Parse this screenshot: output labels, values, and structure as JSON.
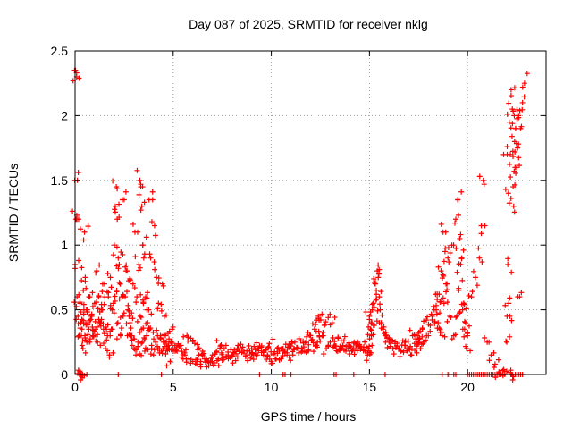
{
  "chart_data": {
    "type": "scatter",
    "title": "Day 087 of 2025, SRMTID for receiver nklg",
    "xlabel": "GPS time / hours",
    "ylabel": "SRMTID / TECUs",
    "xlim": [
      0,
      24
    ],
    "ylim": [
      0,
      2.5
    ],
    "xticks": [
      0,
      5,
      10,
      15,
      20
    ],
    "xtick_labels": [
      "0",
      "5",
      "10",
      "15",
      "20"
    ],
    "yticks": [
      0,
      0.5,
      1,
      1.5,
      2,
      2.5
    ],
    "ytick_labels": [
      "0",
      "0.5",
      "1",
      "1.5",
      "2",
      "2.5"
    ],
    "grid": true,
    "marker": "+",
    "color": "#ff0000",
    "series": [
      {
        "name": "SRMTID",
        "x": [
          0.0,
          0.05,
          0.1,
          0.15,
          0.2,
          0.25,
          0.3,
          0.35,
          0.4,
          0.45,
          0.5,
          0.55,
          0.6,
          0.7,
          0.8,
          0.9,
          1.0,
          1.1,
          1.2,
          1.3,
          1.4,
          1.5,
          1.6,
          1.7,
          1.8,
          1.9,
          2.0,
          2.05,
          2.1,
          2.15,
          2.2,
          2.25,
          2.3,
          2.4,
          2.5,
          2.6,
          2.7,
          2.8,
          2.9,
          3.0,
          3.1,
          3.2,
          3.3,
          3.35,
          3.4,
          3.45,
          3.5,
          3.6,
          3.7,
          3.8,
          3.9,
          4.0,
          4.1,
          4.2,
          4.3,
          4.4,
          4.5,
          4.6,
          4.7,
          4.8,
          4.9,
          5.0,
          5.2,
          5.4,
          5.6,
          5.8,
          6.0,
          6.2,
          6.4,
          6.6,
          6.8,
          7.0,
          7.2,
          7.4,
          7.6,
          7.8,
          8.0,
          8.2,
          8.4,
          8.6,
          8.8,
          9.0,
          9.2,
          9.4,
          9.6,
          9.8,
          10.0,
          10.2,
          10.4,
          10.6,
          10.8,
          11.0,
          11.2,
          11.4,
          11.6,
          11.8,
          12.0,
          12.2,
          12.3,
          12.4,
          12.6,
          12.8,
          13.0,
          13.2,
          13.4,
          13.6,
          13.8,
          14.0,
          14.2,
          14.4,
          14.6,
          14.8,
          14.9,
          15.0,
          15.05,
          15.1,
          15.2,
          15.3,
          15.4,
          15.5,
          15.6,
          15.8,
          16.0,
          16.2,
          16.4,
          16.6,
          16.8,
          17.0,
          17.2,
          17.4,
          17.5,
          17.6,
          17.8,
          18.0,
          18.2,
          18.4,
          18.5,
          18.6,
          18.7,
          18.8,
          18.9,
          19.0,
          19.2,
          19.4,
          19.5,
          19.6,
          19.7,
          19.8,
          19.9,
          20.0,
          20.2,
          20.4,
          20.6,
          20.7,
          20.8,
          21.0,
          21.2,
          21.4,
          21.6,
          21.8,
          21.9,
          22.0,
          22.05,
          22.1,
          22.15,
          22.2,
          22.25,
          22.3,
          22.35,
          22.4,
          22.5,
          22.6,
          22.7,
          22.8,
          22.9,
          0.02,
          0.08,
          0.12,
          0.18,
          0.22,
          0.28,
          0.32,
          0.38,
          0.42,
          0.48,
          0.52,
          0.58,
          0.65,
          0.75,
          0.85,
          0.95,
          1.05,
          1.15,
          1.25,
          1.35,
          1.45,
          1.55,
          1.65,
          1.75,
          1.85,
          1.95,
          2.12,
          2.18,
          2.32,
          2.45,
          2.55,
          2.65,
          2.75,
          2.85,
          2.95,
          3.05,
          3.15,
          3.25,
          3.32,
          3.38,
          3.42,
          3.48,
          3.55,
          3.65,
          3.75,
          3.85,
          3.95,
          4.05,
          4.15,
          4.25,
          4.35,
          4.45,
          4.55,
          4.65,
          4.75,
          4.85,
          4.95,
          5.1,
          5.3,
          5.5,
          5.7,
          5.9,
          6.1,
          6.3,
          6.5,
          6.7,
          6.9,
          7.1,
          7.3,
          7.5,
          7.7,
          7.9,
          8.1,
          8.3,
          8.5,
          8.7,
          8.9,
          9.1,
          9.3,
          9.5,
          9.7,
          9.9,
          10.1,
          10.3,
          10.5,
          10.7,
          10.9,
          11.1,
          11.3,
          11.5,
          11.7,
          11.9,
          12.1,
          12.25,
          12.35,
          12.45,
          12.7,
          12.9,
          13.1,
          13.3,
          13.5,
          13.7,
          13.9,
          14.1,
          14.3,
          14.5,
          14.7,
          14.85,
          14.95,
          15.02,
          15.08,
          15.15,
          15.25,
          15.35,
          15.45,
          15.55,
          15.7,
          15.9,
          16.1,
          16.3,
          16.5,
          16.7,
          16.9,
          17.1,
          17.3,
          17.45,
          17.55,
          17.7,
          17.9,
          18.1,
          18.3,
          18.45,
          18.55,
          18.65,
          18.75,
          18.85,
          18.95,
          19.1,
          19.3,
          19.45,
          19.55,
          19.65,
          19.75,
          19.85,
          19.95,
          22.02,
          22.08,
          22.12,
          22.18,
          22.22,
          22.28,
          22.32,
          22.38,
          22.42,
          22.45,
          22.55,
          22.65
        ],
        "y": [
          0.85,
          1.2,
          0.6,
          0.45,
          0.3,
          0.55,
          0.4,
          0.35,
          0.2,
          0.5,
          0.3,
          0.4,
          0.25,
          0.35,
          0.45,
          0.3,
          0.55,
          0.8,
          0.6,
          0.4,
          0.5,
          0.7,
          0.35,
          0.6,
          0.75,
          0.5,
          1.0,
          1.3,
          1.45,
          1.2,
          0.9,
          0.85,
          0.7,
          0.6,
          1.35,
          0.8,
          0.5,
          0.4,
          0.3,
          0.2,
          0.15,
          0.25,
          1.5,
          1.45,
          1.3,
          1.0,
          0.9,
          0.6,
          0.4,
          0.35,
          0.2,
          0.15,
          0.25,
          0.3,
          0.2,
          0.18,
          0.25,
          0.3,
          0.22,
          0.2,
          0.25,
          0.2,
          0.18,
          0.2,
          0.15,
          0.12,
          0.1,
          0.08,
          0.1,
          0.12,
          0.1,
          0.15,
          0.18,
          0.22,
          0.2,
          0.15,
          0.14,
          0.16,
          0.2,
          0.18,
          0.15,
          0.2,
          0.16,
          0.22,
          0.18,
          0.15,
          0.1,
          0.12,
          0.18,
          0.2,
          0.15,
          0.22,
          0.25,
          0.2,
          0.18,
          0.25,
          0.3,
          0.35,
          0.42,
          0.45,
          0.3,
          0.2,
          0.25,
          0.22,
          0.28,
          0.2,
          0.18,
          0.22,
          0.2,
          0.25,
          0.2,
          0.18,
          0.15,
          0.45,
          0.35,
          0.3,
          0.55,
          0.7,
          0.8,
          0.6,
          0.4,
          0.3,
          0.25,
          0.2,
          0.22,
          0.18,
          0.25,
          0.2,
          0.3,
          0.22,
          0.25,
          0.2,
          0.25,
          0.3,
          0.45,
          0.5,
          0.4,
          0.35,
          0.3,
          0.55,
          0.7,
          0.9,
          1.0,
          1.2,
          1.35,
          1.05,
          0.9,
          0.55,
          0.4,
          0.3,
          0.6,
          0.75,
          0.9,
          1.15,
          1.5,
          0.25,
          0.15,
          0.08,
          0.02,
          0.03,
          0.0,
          0.25,
          0.85,
          0.55,
          0.45,
          0.0,
          0.0,
          0.0,
          1.3,
          1.8,
          1.6,
          2.0,
          1.9,
          2.1,
          2.25,
          2.35,
          2.3,
          1.5,
          1.2,
          0.0,
          0.0,
          0.0,
          0.0,
          0.65,
          1.1,
          0.75,
          0.5,
          0.4,
          0.6,
          0.45,
          0.3,
          0.35,
          0.25,
          0.4,
          0.5,
          0.35,
          0.2,
          0.3,
          0.15,
          0.35,
          0.55,
          0.65,
          0.4,
          0.3,
          0.45,
          0.6,
          0.8,
          0.45,
          0.3,
          0.7,
          1.1,
          0.6,
          0.85,
          0.45,
          0.35,
          0.25,
          0.55,
          0.18,
          0.3,
          0.5,
          0.9,
          1.35,
          1.15,
          0.75,
          0.55,
          0.3,
          0.7,
          0.45,
          0.25,
          0.2,
          0.1,
          0.35,
          0.18,
          0.22,
          0.12,
          0.3,
          0.28,
          0.24,
          0.15,
          0.18,
          0.12,
          0.1,
          0.09,
          0.12,
          0.11,
          0.14,
          0.13,
          0.16,
          0.2,
          0.17,
          0.14,
          0.18,
          0.15,
          0.2,
          0.17,
          0.19,
          0.24,
          0.16,
          0.2,
          0.12,
          0.17,
          0.21,
          0.15,
          0.2,
          0.26,
          0.18,
          0.23,
          0.27,
          0.22,
          0.25,
          0.3,
          0.38,
          0.44,
          0.4,
          0.22,
          0.2,
          0.26,
          0.2,
          0.18,
          0.24,
          0.22,
          0.19,
          0.21,
          0.2,
          0.17,
          0.4,
          0.5,
          0.38,
          0.62,
          0.75,
          0.5,
          0.35,
          0.28,
          0.2,
          0.24,
          0.2,
          0.26,
          0.2,
          0.15,
          0.24,
          0.3,
          0.28,
          0.35,
          0.42,
          0.38,
          0.5,
          0.58,
          0.62,
          0.8,
          1.1,
          0.95,
          0.7,
          0.45,
          0.3,
          0.45,
          0.65,
          0.85,
          0.5,
          0.35,
          0.2,
          1.7,
          1.4,
          1.95,
          1.7,
          2.2,
          2.05,
          1.45,
          2.0,
          1.6,
          1.9,
          1.75,
          0.6
        ]
      }
    ],
    "zero_markers_x": [
      0.6,
      2.2,
      4.4,
      9.4,
      10.6,
      10.7,
      11.0,
      13.2,
      13.3,
      14.2,
      15.8,
      18.7,
      19.0,
      19.1,
      19.3,
      19.4,
      20.0,
      20.1,
      20.2,
      20.3,
      20.4,
      20.5,
      20.6,
      20.7,
      20.8,
      20.9,
      21.0,
      21.1,
      21.2,
      21.3,
      21.4,
      21.5,
      21.6,
      21.7,
      21.8,
      21.9,
      22.6,
      22.7,
      22.8
    ]
  }
}
